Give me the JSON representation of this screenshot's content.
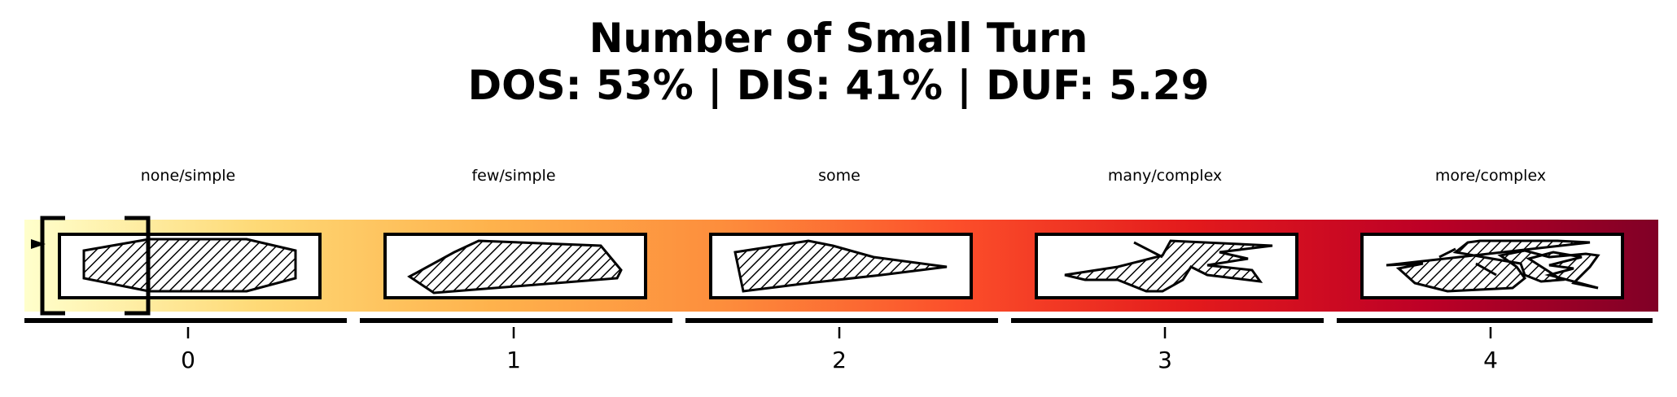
{
  "title": {
    "line1": "Number of Small Turn",
    "line2": "DOS: 53% | DIS: 41% | DUF: 5.29"
  },
  "scale": {
    "levels": [
      {
        "value": "0",
        "label": "none/simple"
      },
      {
        "value": "1",
        "label": "few/simple"
      },
      {
        "value": "2",
        "label": "some"
      },
      {
        "value": "3",
        "label": "many/complex"
      },
      {
        "value": "4",
        "label": "more/complex"
      }
    ],
    "selected_index": 0,
    "colors": {
      "gradient": [
        "#ffffcc",
        "#fed976",
        "#feb24c",
        "#fd8d3c",
        "#fc4e2a",
        "#e31a1c",
        "#bd0026",
        "#800026"
      ],
      "ink": "#000000",
      "panel": "#ffffff"
    }
  }
}
